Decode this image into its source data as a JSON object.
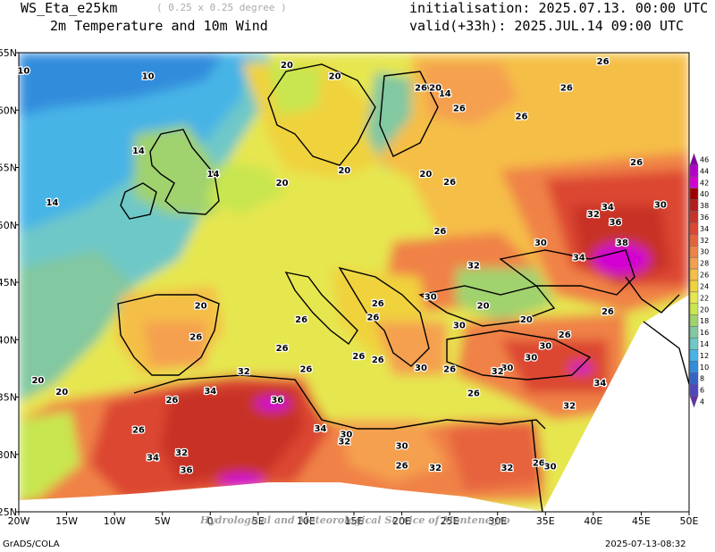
{
  "header": {
    "model": "WS_Eta_e25km",
    "resolution": "( 0.25 x 0.25 degree )",
    "fields": "2m Temperature and 10m Wind",
    "init": "initialisation: 2025.07.13. 00:00 UTC",
    "valid": "valid(+33h): 2025.JUL.14 09:00 UTC"
  },
  "axes": {
    "lon_labels": [
      "20W",
      "15W",
      "10W",
      "5W",
      "0",
      "5E",
      "10E",
      "15E",
      "20E",
      "25E",
      "30E",
      "35E",
      "40E",
      "45E",
      "50E"
    ],
    "lat_labels": [
      "65N",
      "60N",
      "55N",
      "50N",
      "45N",
      "40N",
      "35N",
      "30N",
      "25N"
    ]
  },
  "colorbar": {
    "labels": [
      "46",
      "44",
      "42",
      "40",
      "38",
      "36",
      "34",
      "32",
      "30",
      "28",
      "26",
      "24",
      "22",
      "20",
      "18",
      "16",
      "14",
      "12",
      "10",
      "8",
      "6",
      "4"
    ],
    "colors": [
      "#8800aa",
      "#b400c8",
      "#d200d2",
      "#a00000",
      "#b41e1e",
      "#c83228",
      "#dc4632",
      "#e6643c",
      "#f08246",
      "#f5a050",
      "#f5be46",
      "#f0d23c",
      "#e6e650",
      "#c8e650",
      "#a0d26e",
      "#82c8a0",
      "#6ec8c8",
      "#46b4e6",
      "#328cdc",
      "#3264c8",
      "#5046be",
      "#6432aa"
    ]
  },
  "contour_labels": [
    {
      "text": "10",
      "lon": -19.5,
      "lat": 63.5
    },
    {
      "text": "10",
      "lon": -6.5,
      "lat": 63.0
    },
    {
      "text": "14",
      "lon": -7.5,
      "lat": 56.5
    },
    {
      "text": "14",
      "lon": -16.5,
      "lat": 52.0
    },
    {
      "text": "14",
      "lon": 0.3,
      "lat": 54.5
    },
    {
      "text": "14",
      "lon": 24.5,
      "lat": 61.5
    },
    {
      "text": "20",
      "lon": 8.0,
      "lat": 64.0
    },
    {
      "text": "20",
      "lon": 13.0,
      "lat": 63.0
    },
    {
      "text": "20",
      "lon": 14.0,
      "lat": 54.8
    },
    {
      "text": "20",
      "lon": 7.5,
      "lat": 53.7
    },
    {
      "text": "20",
      "lon": 22.5,
      "lat": 54.5
    },
    {
      "text": "20",
      "lon": 23.5,
      "lat": 62.0
    },
    {
      "text": "20",
      "lon": -1.0,
      "lat": 43.0
    },
    {
      "text": "20",
      "lon": -18.0,
      "lat": 36.5
    },
    {
      "text": "20",
      "lon": -15.5,
      "lat": 35.5
    },
    {
      "text": "20",
      "lon": 28.5,
      "lat": 43.0
    },
    {
      "text": "20",
      "lon": 33.0,
      "lat": 41.8
    },
    {
      "text": "26",
      "lon": 22.0,
      "lat": 62.0
    },
    {
      "text": "26",
      "lon": 26.0,
      "lat": 60.2
    },
    {
      "text": "26",
      "lon": 32.5,
      "lat": 59.5
    },
    {
      "text": "26",
      "lon": 37.2,
      "lat": 62.0
    },
    {
      "text": "26",
      "lon": 41.0,
      "lat": 64.3
    },
    {
      "text": "26",
      "lon": 44.5,
      "lat": 55.5
    },
    {
      "text": "26",
      "lon": 25.0,
      "lat": 53.8
    },
    {
      "text": "26",
      "lon": 24.0,
      "lat": 49.5
    },
    {
      "text": "26",
      "lon": 9.5,
      "lat": 41.8
    },
    {
      "text": "26",
      "lon": 17.0,
      "lat": 42.0
    },
    {
      "text": "26",
      "lon": 17.5,
      "lat": 43.2
    },
    {
      "text": "26",
      "lon": -1.5,
      "lat": 40.3
    },
    {
      "text": "26",
      "lon": 7.5,
      "lat": 39.3
    },
    {
      "text": "26",
      "lon": 10.0,
      "lat": 37.5
    },
    {
      "text": "26",
      "lon": 15.5,
      "lat": 38.6
    },
    {
      "text": "26",
      "lon": 17.5,
      "lat": 38.3
    },
    {
      "text": "26",
      "lon": -4.0,
      "lat": 34.8
    },
    {
      "text": "26",
      "lon": -7.5,
      "lat": 32.2
    },
    {
      "text": "26",
      "lon": 20.0,
      "lat": 29.1
    },
    {
      "text": "26",
      "lon": 25.0,
      "lat": 37.5
    },
    {
      "text": "26",
      "lon": 27.5,
      "lat": 35.4
    },
    {
      "text": "26",
      "lon": 34.3,
      "lat": 29.3
    },
    {
      "text": "26",
      "lon": 37.0,
      "lat": 40.5
    },
    {
      "text": "26",
      "lon": 41.5,
      "lat": 42.5
    },
    {
      "text": "30",
      "lon": 34.5,
      "lat": 48.5
    },
    {
      "text": "30",
      "lon": 23.0,
      "lat": 43.8
    },
    {
      "text": "30",
      "lon": 26.0,
      "lat": 41.3
    },
    {
      "text": "30",
      "lon": 35.0,
      "lat": 39.5
    },
    {
      "text": "30",
      "lon": 22.0,
      "lat": 37.6
    },
    {
      "text": "30",
      "lon": 31.0,
      "lat": 37.6
    },
    {
      "text": "30",
      "lon": 14.2,
      "lat": 31.8
    },
    {
      "text": "30",
      "lon": 20.0,
      "lat": 30.8
    },
    {
      "text": "30",
      "lon": 33.5,
      "lat": 38.5
    },
    {
      "text": "30",
      "lon": 35.5,
      "lat": 29.0
    },
    {
      "text": "30",
      "lon": 47.0,
      "lat": 51.8
    },
    {
      "text": "32",
      "lon": 27.5,
      "lat": 46.5
    },
    {
      "text": "32",
      "lon": 40.0,
      "lat": 51.0
    },
    {
      "text": "32",
      "lon": 30.0,
      "lat": 37.3
    },
    {
      "text": "32",
      "lon": 3.5,
      "lat": 37.3
    },
    {
      "text": "32",
      "lon": -3.0,
      "lat": 30.2
    },
    {
      "text": "32",
      "lon": 14.0,
      "lat": 31.2
    },
    {
      "text": "32",
      "lon": 23.5,
      "lat": 28.9
    },
    {
      "text": "32",
      "lon": 31.0,
      "lat": 28.9
    },
    {
      "text": "32",
      "lon": 37.5,
      "lat": 34.3
    },
    {
      "text": "34",
      "lon": 41.5,
      "lat": 51.6
    },
    {
      "text": "34",
      "lon": 0.0,
      "lat": 35.6
    },
    {
      "text": "34",
      "lon": 11.5,
      "lat": 32.3
    },
    {
      "text": "34",
      "lon": -6.0,
      "lat": 29.8
    },
    {
      "text": "34",
      "lon": 38.5,
      "lat": 47.2
    },
    {
      "text": "34",
      "lon": 40.7,
      "lat": 36.3
    },
    {
      "text": "36",
      "lon": 42.3,
      "lat": 50.3
    },
    {
      "text": "36",
      "lon": 7.0,
      "lat": 34.8
    },
    {
      "text": "36",
      "lon": -2.5,
      "lat": 28.7
    },
    {
      "text": "38",
      "lon": 43.0,
      "lat": 48.5
    }
  ],
  "footer": {
    "software": "GrADS/COLA",
    "timestamp": "2025-07-13-08:32",
    "credit": "Hydrological and Meteorological Service of Montenegro"
  }
}
